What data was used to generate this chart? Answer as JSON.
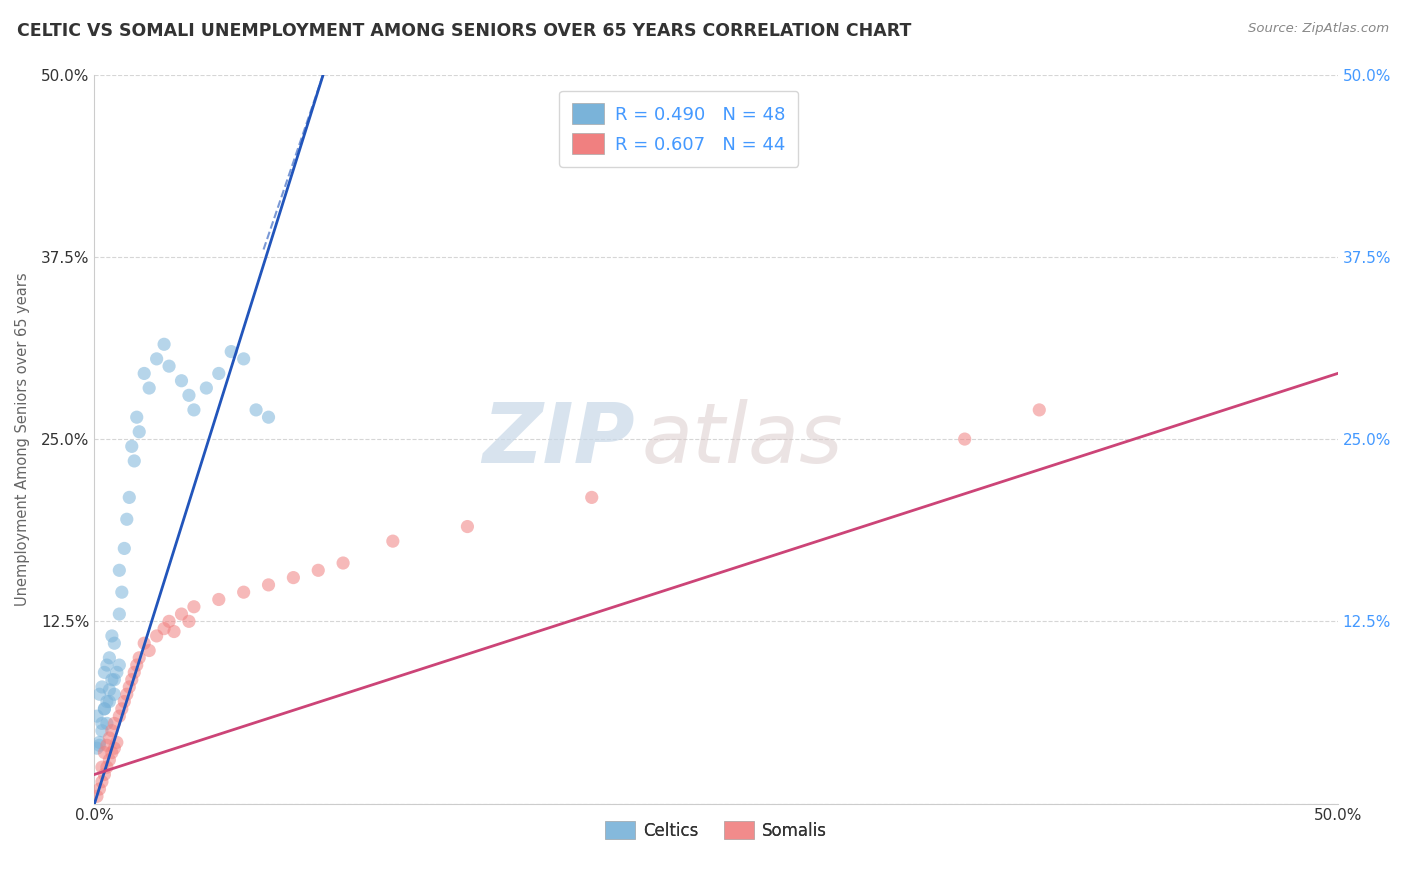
{
  "title": "CELTIC VS SOMALI UNEMPLOYMENT AMONG SENIORS OVER 65 YEARS CORRELATION CHART",
  "source": "Source: ZipAtlas.com",
  "ylabel": "Unemployment Among Seniors over 65 years",
  "xlim": [
    0.0,
    0.5
  ],
  "ylim": [
    0.0,
    0.5
  ],
  "watermark_zip": "ZIP",
  "watermark_atlas": "atlas",
  "celtics_x": [
    0.001,
    0.002,
    0.002,
    0.003,
    0.003,
    0.004,
    0.004,
    0.005,
    0.005,
    0.006,
    0.006,
    0.007,
    0.007,
    0.008,
    0.008,
    0.009,
    0.01,
    0.01,
    0.011,
    0.012,
    0.013,
    0.014,
    0.015,
    0.016,
    0.017,
    0.018,
    0.02,
    0.022,
    0.025,
    0.028,
    0.03,
    0.035,
    0.038,
    0.04,
    0.045,
    0.05,
    0.055,
    0.06,
    0.065,
    0.07,
    0.001,
    0.002,
    0.003,
    0.004,
    0.005,
    0.006,
    0.008,
    0.01
  ],
  "celtics_y": [
    0.06,
    0.04,
    0.075,
    0.05,
    0.08,
    0.065,
    0.09,
    0.055,
    0.095,
    0.07,
    0.1,
    0.085,
    0.115,
    0.075,
    0.11,
    0.09,
    0.13,
    0.16,
    0.145,
    0.175,
    0.195,
    0.21,
    0.245,
    0.235,
    0.265,
    0.255,
    0.295,
    0.285,
    0.305,
    0.315,
    0.3,
    0.29,
    0.28,
    0.27,
    0.285,
    0.295,
    0.31,
    0.305,
    0.27,
    0.265,
    0.038,
    0.042,
    0.055,
    0.065,
    0.07,
    0.078,
    0.085,
    0.095
  ],
  "somalis_x": [
    0.001,
    0.002,
    0.003,
    0.003,
    0.004,
    0.004,
    0.005,
    0.005,
    0.006,
    0.006,
    0.007,
    0.007,
    0.008,
    0.008,
    0.009,
    0.01,
    0.011,
    0.012,
    0.013,
    0.014,
    0.015,
    0.016,
    0.017,
    0.018,
    0.02,
    0.022,
    0.025,
    0.028,
    0.03,
    0.032,
    0.035,
    0.038,
    0.04,
    0.05,
    0.06,
    0.07,
    0.08,
    0.09,
    0.1,
    0.12,
    0.15,
    0.2,
    0.35,
    0.38
  ],
  "somalis_y": [
    0.005,
    0.01,
    0.015,
    0.025,
    0.02,
    0.035,
    0.025,
    0.04,
    0.03,
    0.045,
    0.035,
    0.05,
    0.038,
    0.055,
    0.042,
    0.06,
    0.065,
    0.07,
    0.075,
    0.08,
    0.085,
    0.09,
    0.095,
    0.1,
    0.11,
    0.105,
    0.115,
    0.12,
    0.125,
    0.118,
    0.13,
    0.125,
    0.135,
    0.14,
    0.145,
    0.15,
    0.155,
    0.16,
    0.165,
    0.18,
    0.19,
    0.21,
    0.25,
    0.27
  ],
  "celtics_trend_x": [
    0.0,
    0.092
  ],
  "celtics_trend_y": [
    0.0,
    0.5
  ],
  "somalis_trend_x": [
    0.0,
    0.5
  ],
  "somalis_trend_y": [
    0.02,
    0.295
  ],
  "scatter_alpha": 0.55,
  "scatter_size": 90,
  "dot_color_celtics": "#7ab3d9",
  "dot_color_somalis": "#f08080",
  "trend_color_celtics": "#2255bb",
  "trend_color_somalis": "#cc4477",
  "background_color": "#ffffff",
  "grid_color": "#cccccc",
  "title_color": "#333333",
  "axis_label_color": "#666666",
  "right_tick_color": "#4499ff",
  "legend_text_color": "#4499ff",
  "legend_label_color": "#333333"
}
